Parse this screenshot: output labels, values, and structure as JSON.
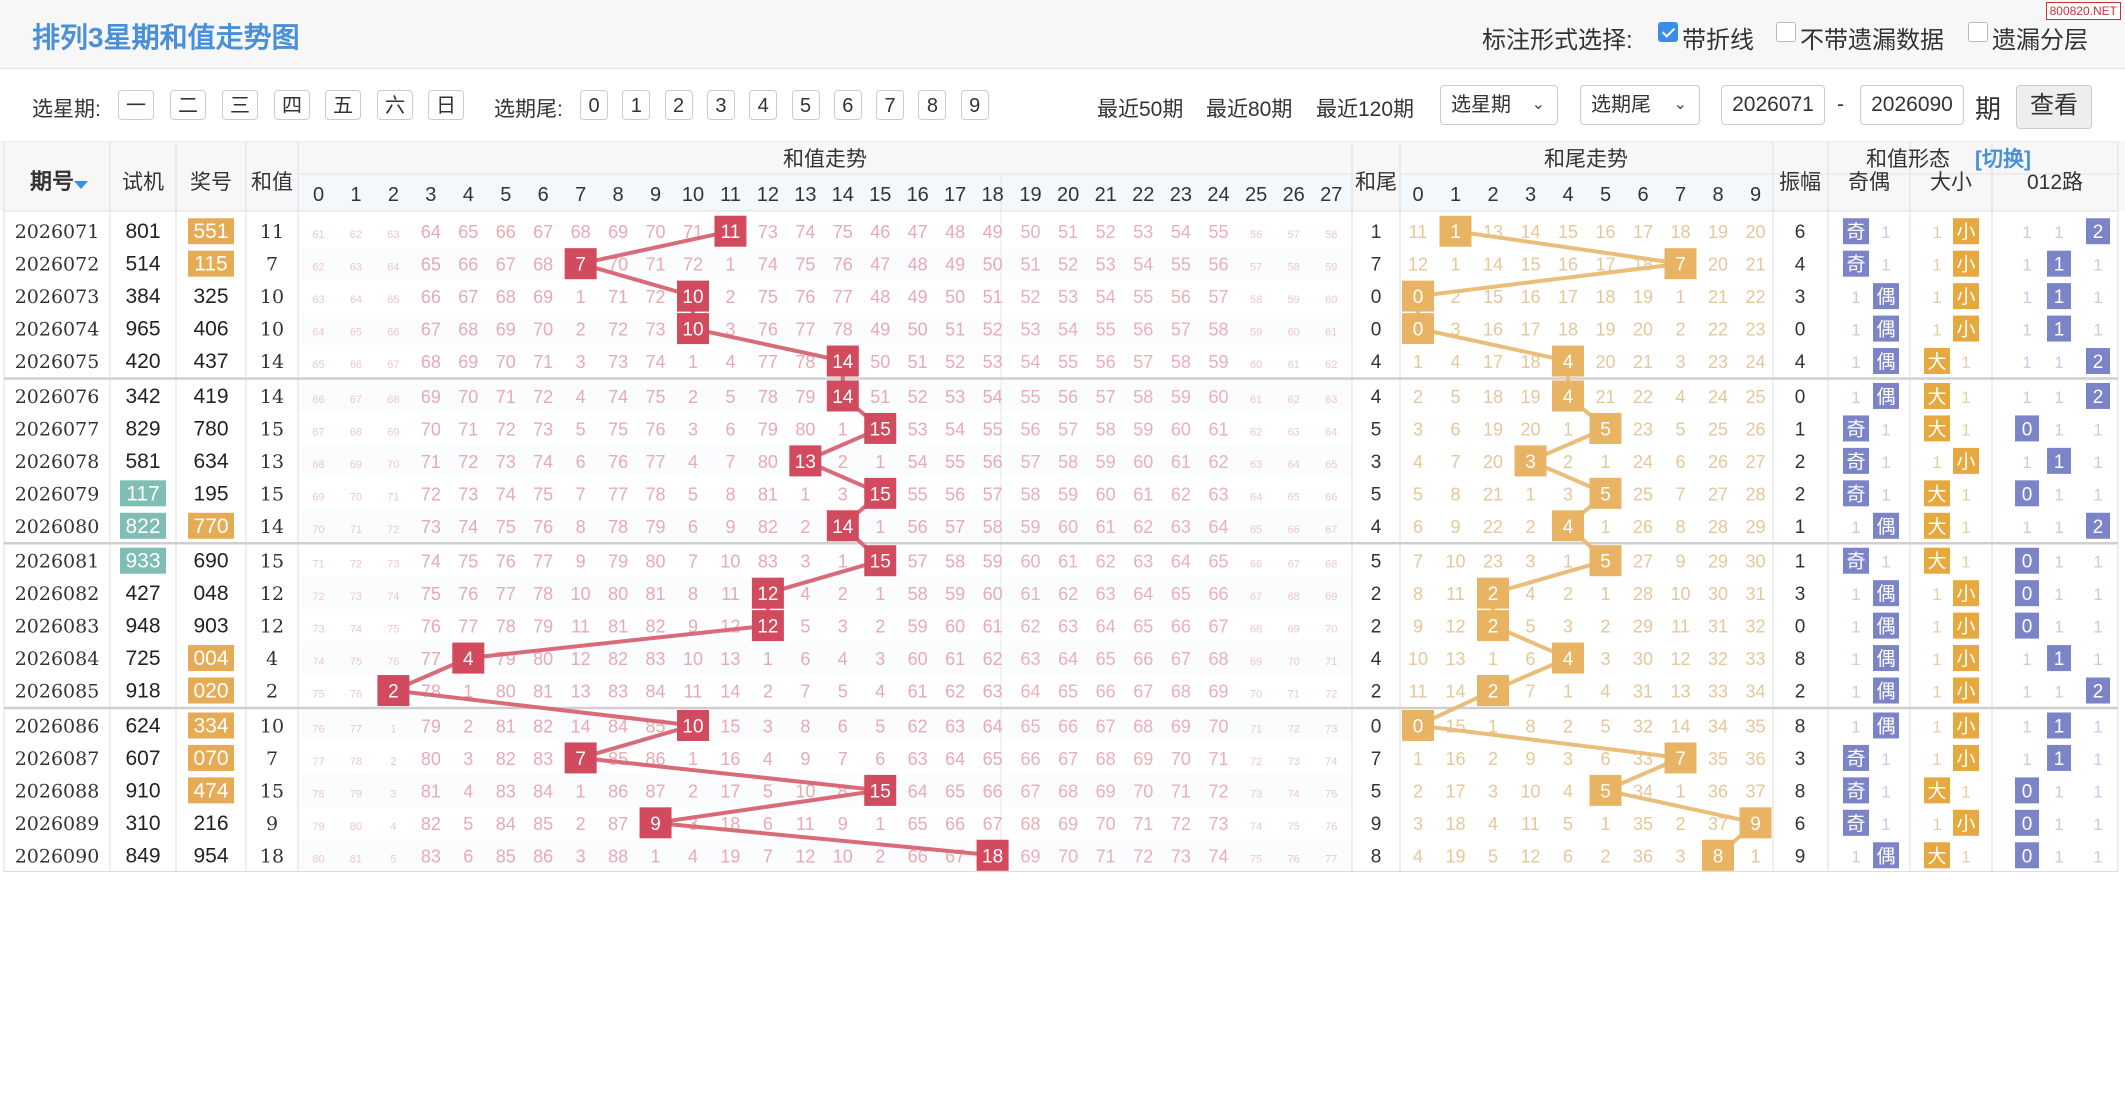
{
  "title": "排列3星期和值走势图",
  "watermark": "800820.NET",
  "mark_options": {
    "label": "标注形式选择:",
    "items": [
      {
        "label": "带折线",
        "checked": true
      },
      {
        "label": "不带遗漏数据",
        "checked": false
      },
      {
        "label": "遗漏分层",
        "checked": false
      }
    ]
  },
  "filters": {
    "weekday_label": "选星期:",
    "weekdays": [
      "一",
      "二",
      "三",
      "四",
      "五",
      "六",
      "日"
    ],
    "tail_label": "选期尾:",
    "tails": [
      "0",
      "1",
      "2",
      "3",
      "4",
      "5",
      "6",
      "7",
      "8",
      "9"
    ],
    "ranges": [
      "最近50期",
      "最近80期",
      "最近120期"
    ],
    "weekday_select": "选星期",
    "tail_select": "选期尾",
    "from_issue": "2026071",
    "dash": "-",
    "to_issue": "2026090",
    "issue_unit": "期",
    "view_button": "查看"
  },
  "table": {
    "headers": {
      "issue": "期号",
      "test": "试机",
      "prize": "奖号",
      "sum": "和值",
      "sum_trend": "和值走势",
      "tail": "和尾",
      "tail_trend": "和尾走势",
      "form": "和值形态",
      "switch": "[切换]",
      "amplitude": "振幅",
      "odd_even": "奇偶",
      "big_small": "大小",
      "road": "012路"
    },
    "sum_columns": [
      "0",
      "1",
      "2",
      "3",
      "4",
      "5",
      "6",
      "7",
      "8",
      "9",
      "10",
      "11",
      "12",
      "13",
      "14",
      "15",
      "16",
      "17",
      "18",
      "19",
      "20",
      "21",
      "22",
      "23",
      "24",
      "25",
      "26",
      "27"
    ],
    "tail_columns": [
      "0",
      "1",
      "2",
      "3",
      "4",
      "5",
      "6",
      "7",
      "8",
      "9"
    ],
    "oe_labels": [
      "奇",
      "偶"
    ],
    "bs_labels": [
      "大",
      "小"
    ],
    "rows": [
      {
        "issue": "2026071",
        "test": "801",
        "prize": "551",
        "sum": 11,
        "tail": 1,
        "amp": 6,
        "test_hl": false,
        "prize_hl": true
      },
      {
        "issue": "2026072",
        "test": "514",
        "prize": "115",
        "sum": 7,
        "tail": 7,
        "amp": 4,
        "test_hl": false,
        "prize_hl": true
      },
      {
        "issue": "2026073",
        "test": "384",
        "prize": "325",
        "sum": 10,
        "tail": 0,
        "amp": 3,
        "test_hl": false,
        "prize_hl": false
      },
      {
        "issue": "2026074",
        "test": "965",
        "prize": "406",
        "sum": 10,
        "tail": 0,
        "amp": 0,
        "test_hl": false,
        "prize_hl": false
      },
      {
        "issue": "2026075",
        "test": "420",
        "prize": "437",
        "sum": 14,
        "tail": 4,
        "amp": 4,
        "test_hl": false,
        "prize_hl": false
      },
      {
        "issue": "2026076",
        "test": "342",
        "prize": "419",
        "sum": 14,
        "tail": 4,
        "amp": 0,
        "test_hl": false,
        "prize_hl": false
      },
      {
        "issue": "2026077",
        "test": "829",
        "prize": "780",
        "sum": 15,
        "tail": 5,
        "amp": 1,
        "test_hl": false,
        "prize_hl": false
      },
      {
        "issue": "2026078",
        "test": "581",
        "prize": "634",
        "sum": 13,
        "tail": 3,
        "amp": 2,
        "test_hl": false,
        "prize_hl": false
      },
      {
        "issue": "2026079",
        "test": "117",
        "prize": "195",
        "sum": 15,
        "tail": 5,
        "amp": 2,
        "test_hl": true,
        "prize_hl": false
      },
      {
        "issue": "2026080",
        "test": "822",
        "prize": "770",
        "sum": 14,
        "tail": 4,
        "amp": 1,
        "test_hl": true,
        "prize_hl": true
      },
      {
        "issue": "2026081",
        "test": "933",
        "prize": "690",
        "sum": 15,
        "tail": 5,
        "amp": 1,
        "test_hl": true,
        "prize_hl": false
      },
      {
        "issue": "2026082",
        "test": "427",
        "prize": "048",
        "sum": 12,
        "tail": 2,
        "amp": 3,
        "test_hl": false,
        "prize_hl": false
      },
      {
        "issue": "2026083",
        "test": "948",
        "prize": "903",
        "sum": 12,
        "tail": 2,
        "amp": 0,
        "test_hl": false,
        "prize_hl": false
      },
      {
        "issue": "2026084",
        "test": "725",
        "prize": "004",
        "sum": 4,
        "tail": 4,
        "amp": 8,
        "test_hl": false,
        "prize_hl": true
      },
      {
        "issue": "2026085",
        "test": "918",
        "prize": "020",
        "sum": 2,
        "tail": 2,
        "amp": 2,
        "test_hl": false,
        "prize_hl": true
      },
      {
        "issue": "2026086",
        "test": "624",
        "prize": "334",
        "sum": 10,
        "tail": 0,
        "amp": 8,
        "test_hl": false,
        "prize_hl": true
      },
      {
        "issue": "2026087",
        "test": "607",
        "prize": "070",
        "sum": 7,
        "tail": 7,
        "amp": 3,
        "test_hl": false,
        "prize_hl": true
      },
      {
        "issue": "2026088",
        "test": "910",
        "prize": "474",
        "sum": 15,
        "tail": 5,
        "amp": 8,
        "test_hl": false,
        "prize_hl": true
      },
      {
        "issue": "2026089",
        "test": "310",
        "prize": "216",
        "sum": 9,
        "tail": 9,
        "amp": 6,
        "test_hl": false,
        "prize_hl": false
      },
      {
        "issue": "2026090",
        "test": "849",
        "prize": "954",
        "sum": 18,
        "tail": 8,
        "amp": 9,
        "test_hl": false,
        "prize_hl": false
      }
    ]
  },
  "colors": {
    "sum_ball": "#d24a5e",
    "sum_line": "#d96b78",
    "tail_ball": "#e8b464",
    "tail_line": "#ebbd7a",
    "form_blue": "#7c84c8",
    "form_orange": "#e5a93f",
    "test_highlight": "#7fbdb5",
    "prize_highlight": "#e6ac55",
    "header_blue": "#4a90d9"
  }
}
